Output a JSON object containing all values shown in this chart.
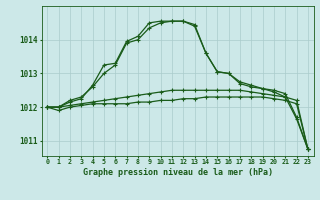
{
  "background_color": "#cce8e8",
  "grid_color": "#aacccc",
  "line_color": "#1a5c1a",
  "title": "Graphe pression niveau de la mer (hPa)",
  "ylabel_ticks": [
    1011,
    1012,
    1013,
    1014
  ],
  "xlim": [
    -0.5,
    23.5
  ],
  "ylim": [
    1010.55,
    1015.0
  ],
  "x_ticks": [
    0,
    1,
    2,
    3,
    4,
    5,
    6,
    7,
    8,
    9,
    10,
    11,
    12,
    13,
    14,
    15,
    16,
    17,
    18,
    19,
    20,
    21,
    22,
    23
  ],
  "series1_x": [
    0,
    1,
    2,
    3,
    4,
    5,
    6,
    7,
    8,
    9,
    10,
    11,
    12,
    13,
    14,
    15,
    16,
    17,
    18,
    19,
    20,
    21,
    22,
    23
  ],
  "series1_y": [
    1012.0,
    1011.9,
    1012.0,
    1012.05,
    1012.1,
    1012.1,
    1012.1,
    1012.1,
    1012.15,
    1012.15,
    1012.2,
    1012.2,
    1012.25,
    1012.25,
    1012.3,
    1012.3,
    1012.3,
    1012.3,
    1012.3,
    1012.3,
    1012.25,
    1012.2,
    1012.1,
    1010.75
  ],
  "series2_x": [
    0,
    1,
    2,
    3,
    4,
    5,
    6,
    7,
    8,
    9,
    10,
    11,
    12,
    13,
    14,
    15,
    16,
    17,
    18,
    19,
    20,
    21,
    22,
    23
  ],
  "series2_y": [
    1012.0,
    1012.0,
    1012.05,
    1012.1,
    1012.15,
    1012.2,
    1012.25,
    1012.3,
    1012.35,
    1012.4,
    1012.45,
    1012.5,
    1012.5,
    1012.5,
    1012.5,
    1012.5,
    1012.5,
    1012.5,
    1012.45,
    1012.4,
    1012.35,
    1012.3,
    1012.2,
    1010.75
  ],
  "series3_x": [
    0,
    1,
    2,
    3,
    4,
    5,
    6,
    7,
    8,
    9,
    10,
    11,
    12,
    13,
    14,
    15,
    16,
    17,
    18,
    19,
    20,
    21,
    22,
    23
  ],
  "series3_y": [
    1012.0,
    1012.0,
    1012.2,
    1012.3,
    1012.6,
    1013.0,
    1013.25,
    1013.9,
    1014.0,
    1014.35,
    1014.5,
    1014.55,
    1014.55,
    1014.45,
    1013.6,
    1013.05,
    1013.0,
    1012.75,
    1012.65,
    1012.55,
    1012.45,
    1012.3,
    1011.65,
    1010.75
  ],
  "series4_x": [
    0,
    1,
    2,
    3,
    4,
    5,
    6,
    7,
    8,
    9,
    10,
    11,
    12,
    13,
    14,
    15,
    16,
    17,
    18,
    19,
    20,
    21,
    22,
    23
  ],
  "series4_y": [
    1012.0,
    1012.0,
    1012.15,
    1012.25,
    1012.65,
    1013.25,
    1013.3,
    1013.95,
    1014.1,
    1014.5,
    1014.55,
    1014.55,
    1014.55,
    1014.4,
    1013.6,
    1013.05,
    1013.0,
    1012.7,
    1012.6,
    1012.55,
    1012.5,
    1012.4,
    1011.7,
    1010.75
  ]
}
